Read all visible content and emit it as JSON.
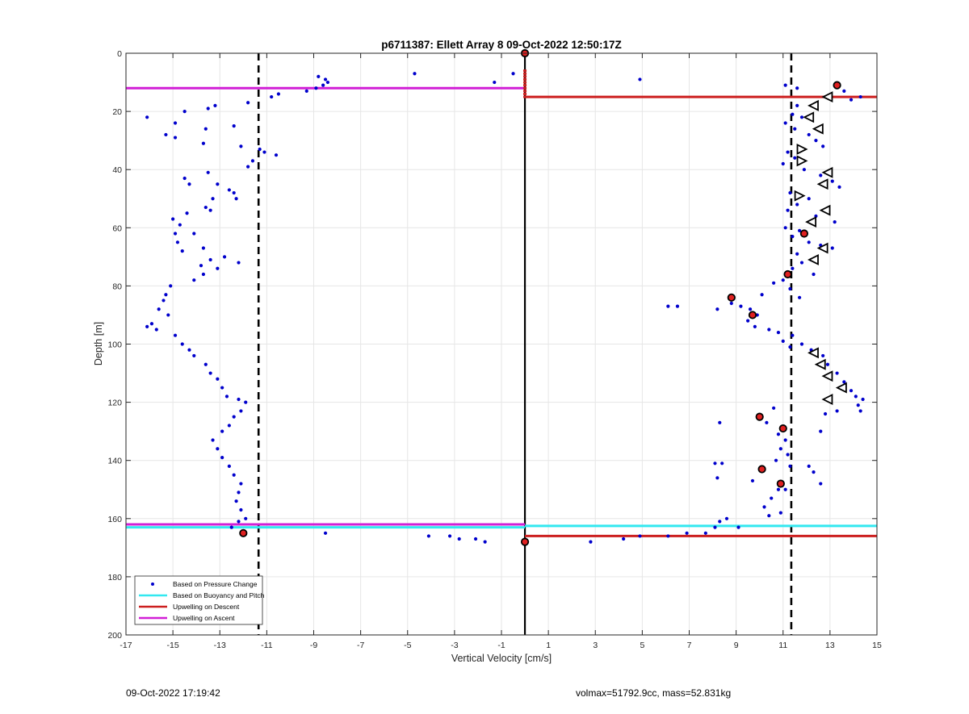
{
  "footer": {
    "timestamp": "09-Oct-2022 17:19:42",
    "summary": "volmax=51792.9cc, mass=52.831kg"
  },
  "colors": {
    "pressure": "#0000cc",
    "buoyancy": "#33e8f0",
    "descent": "#cc1f1f",
    "ascent": "#d11fd6",
    "grid": "#e6e6e6",
    "axis": "#262626"
  },
  "chart_data": {
    "type": "scatter",
    "title": "p6711387: Ellett Array 8 09-Oct-2022 12:50:17Z",
    "xlabel": "Vertical Velocity [cm/s]",
    "ylabel": "Depth [m]",
    "xlim": [
      -17,
      15
    ],
    "ylim": [
      0,
      200
    ],
    "y_reversed": true,
    "grid": true,
    "legend_position": "bottom-left",
    "xticks": [
      -17,
      -15,
      -13,
      -11,
      -9,
      -7,
      -5,
      -3,
      -1,
      1,
      3,
      5,
      7,
      9,
      11,
      13,
      15
    ],
    "yticks": [
      0,
      20,
      40,
      60,
      80,
      100,
      120,
      140,
      160,
      180,
      200
    ],
    "legend": [
      {
        "label": "Based on Pressure Change",
        "style": "dot",
        "color": "#0000cc"
      },
      {
        "label": "Based on Buoyancy and Pitch",
        "style": "line",
        "color": "#33e8f0"
      },
      {
        "label": "Upwelling on Descent",
        "style": "line",
        "color": "#cc1f1f"
      },
      {
        "label": "Upwelling on Ascent",
        "style": "line",
        "color": "#d11fd6"
      }
    ],
    "series": [
      {
        "name": "Based on Pressure Change",
        "marker": "dot",
        "points": [
          [
            -16.1,
            22
          ],
          [
            -15.3,
            28
          ],
          [
            -14.9,
            24
          ],
          [
            -14.5,
            20
          ],
          [
            -14.9,
            29
          ],
          [
            -13.7,
            31
          ],
          [
            -13.5,
            19
          ],
          [
            -13.2,
            18
          ],
          [
            -13.6,
            26
          ],
          [
            -12.4,
            25
          ],
          [
            -12.1,
            32
          ],
          [
            -11.8,
            39
          ],
          [
            -11.6,
            37
          ],
          [
            -11.3,
            33
          ],
          [
            -11.1,
            34
          ],
          [
            -10.6,
            35
          ],
          [
            -11.8,
            17
          ],
          [
            -10.8,
            15
          ],
          [
            -10.5,
            14
          ],
          [
            -9.3,
            13
          ],
          [
            -8.9,
            12
          ],
          [
            -8.8,
            8
          ],
          [
            -8.6,
            11
          ],
          [
            -8.5,
            9
          ],
          [
            -8.4,
            10
          ],
          [
            -4.7,
            7
          ],
          [
            -1.3,
            10
          ],
          [
            -0.5,
            7
          ],
          [
            -14.5,
            43
          ],
          [
            -14.3,
            45
          ],
          [
            -13.5,
            41
          ],
          [
            -13.1,
            45
          ],
          [
            -12.6,
            47
          ],
          [
            -13.3,
            50
          ],
          [
            -13.6,
            53
          ],
          [
            -13.4,
            54
          ],
          [
            -12.4,
            48
          ],
          [
            -12.3,
            50
          ],
          [
            -14.4,
            55
          ],
          [
            -15.0,
            57
          ],
          [
            -14.7,
            59
          ],
          [
            -14.9,
            62
          ],
          [
            -14.8,
            65
          ],
          [
            -14.6,
            68
          ],
          [
            -14.1,
            62
          ],
          [
            -13.7,
            67
          ],
          [
            -13.4,
            71
          ],
          [
            -13.8,
            73
          ],
          [
            -13.1,
            74
          ],
          [
            -12.8,
            70
          ],
          [
            -12.2,
            72
          ],
          [
            -13.7,
            76
          ],
          [
            -14.1,
            78
          ],
          [
            -15.1,
            80
          ],
          [
            -15.3,
            83
          ],
          [
            -15.4,
            85
          ],
          [
            -15.6,
            88
          ],
          [
            -15.2,
            90
          ],
          [
            -15.9,
            93
          ],
          [
            -16.1,
            94
          ],
          [
            -15.7,
            95
          ],
          [
            -14.9,
            97
          ],
          [
            -14.6,
            100
          ],
          [
            -14.3,
            102
          ],
          [
            -14.1,
            104
          ],
          [
            -13.6,
            107
          ],
          [
            -13.4,
            110
          ],
          [
            -13.1,
            112
          ],
          [
            -12.9,
            115
          ],
          [
            -12.7,
            118
          ],
          [
            -12.2,
            119
          ],
          [
            -11.9,
            120
          ],
          [
            -12.1,
            123
          ],
          [
            -12.4,
            125
          ],
          [
            -12.6,
            128
          ],
          [
            -12.9,
            130
          ],
          [
            -13.3,
            133
          ],
          [
            -13.1,
            136
          ],
          [
            -12.9,
            139
          ],
          [
            -12.6,
            142
          ],
          [
            -12.4,
            145
          ],
          [
            -12.1,
            148
          ],
          [
            -12.2,
            151
          ],
          [
            -12.3,
            154
          ],
          [
            -12.1,
            157
          ],
          [
            -11.9,
            160
          ],
          [
            -12.2,
            161
          ],
          [
            -12.5,
            163
          ],
          [
            -8.5,
            165
          ],
          [
            -4.1,
            166
          ],
          [
            -3.2,
            166
          ],
          [
            -2.8,
            167
          ],
          [
            -2.1,
            167
          ],
          [
            -1.7,
            168
          ],
          [
            4.9,
            9
          ],
          [
            11.1,
            11
          ],
          [
            11.6,
            12
          ],
          [
            13.6,
            13
          ],
          [
            14.3,
            15
          ],
          [
            13.9,
            16
          ],
          [
            11.6,
            18
          ],
          [
            11.4,
            21
          ],
          [
            11.1,
            24
          ],
          [
            11.8,
            22
          ],
          [
            11.5,
            26
          ],
          [
            12.1,
            28
          ],
          [
            12.4,
            30
          ],
          [
            12.7,
            32
          ],
          [
            11.2,
            34
          ],
          [
            11.5,
            36
          ],
          [
            11.0,
            38
          ],
          [
            11.9,
            40
          ],
          [
            12.6,
            42
          ],
          [
            13.1,
            44
          ],
          [
            13.4,
            46
          ],
          [
            11.3,
            48
          ],
          [
            12.1,
            50
          ],
          [
            11.6,
            52
          ],
          [
            11.2,
            54
          ],
          [
            12.4,
            56
          ],
          [
            13.2,
            58
          ],
          [
            11.1,
            60
          ],
          [
            11.7,
            61
          ],
          [
            11.4,
            63
          ],
          [
            12.1,
            65
          ],
          [
            12.6,
            66
          ],
          [
            13.1,
            67
          ],
          [
            11.6,
            69
          ],
          [
            12.2,
            71
          ],
          [
            11.8,
            72
          ],
          [
            11.4,
            74
          ],
          [
            12.3,
            76
          ],
          [
            11.0,
            78
          ],
          [
            10.6,
            79
          ],
          [
            11.3,
            81
          ],
          [
            10.1,
            83
          ],
          [
            11.7,
            84
          ],
          [
            8.2,
            88
          ],
          [
            6.1,
            87
          ],
          [
            6.5,
            87
          ],
          [
            8.8,
            86
          ],
          [
            9.2,
            87
          ],
          [
            9.6,
            88
          ],
          [
            9.9,
            90
          ],
          [
            9.5,
            92
          ],
          [
            9.8,
            94
          ],
          [
            10.4,
            95
          ],
          [
            10.8,
            96
          ],
          [
            11.4,
            97
          ],
          [
            11.0,
            99
          ],
          [
            11.8,
            100
          ],
          [
            11.3,
            101
          ],
          [
            12.2,
            102
          ],
          [
            12.7,
            104
          ],
          [
            12.9,
            107
          ],
          [
            13.3,
            110
          ],
          [
            13.6,
            113
          ],
          [
            13.9,
            116
          ],
          [
            14.1,
            118
          ],
          [
            14.4,
            119
          ],
          [
            14.2,
            121
          ],
          [
            13.3,
            123
          ],
          [
            12.8,
            124
          ],
          [
            14.3,
            123
          ],
          [
            8.3,
            127
          ],
          [
            10.6,
            122
          ],
          [
            10.3,
            127
          ],
          [
            10.8,
            131
          ],
          [
            11.1,
            133
          ],
          [
            10.9,
            136
          ],
          [
            11.2,
            138
          ],
          [
            10.7,
            140
          ],
          [
            11.3,
            142
          ],
          [
            12.1,
            142
          ],
          [
            12.3,
            144
          ],
          [
            8.1,
            141
          ],
          [
            8.4,
            141
          ],
          [
            8.2,
            146
          ],
          [
            12.6,
            148
          ],
          [
            10.8,
            150
          ],
          [
            10.5,
            153
          ],
          [
            10.2,
            156
          ],
          [
            10.4,
            159
          ],
          [
            12.6,
            130
          ],
          [
            11.1,
            150
          ],
          [
            9.7,
            147
          ],
          [
            8.6,
            160
          ],
          [
            8.3,
            161
          ],
          [
            8.1,
            163
          ],
          [
            7.7,
            165
          ],
          [
            6.9,
            165
          ],
          [
            6.1,
            166
          ],
          [
            4.9,
            166
          ],
          [
            4.2,
            167
          ],
          [
            2.8,
            168
          ],
          [
            9.1,
            163
          ],
          [
            10.9,
            158
          ]
        ]
      },
      {
        "name": "Based on Buoyancy and Pitch",
        "marker": "line",
        "segments": [
          {
            "x": [
              -17,
              0
            ],
            "y": [
              163,
              163
            ]
          },
          {
            "x": [
              0,
              15
            ],
            "y": [
              162.5,
              162.5
            ]
          }
        ]
      },
      {
        "name": "Upwelling on Descent",
        "marker": "line",
        "segments": [
          {
            "x": [
              0,
              15
            ],
            "y": [
              15,
              15
            ]
          },
          {
            "x": [
              0,
              15
            ],
            "y": [
              166,
              166
            ]
          }
        ]
      },
      {
        "name": "Upwelling on Ascent",
        "marker": "line",
        "segments": [
          {
            "x": [
              -17,
              0
            ],
            "y": [
              12,
              12
            ]
          },
          {
            "x": [
              -17,
              0
            ],
            "y": [
              162,
              162
            ]
          }
        ]
      }
    ],
    "reference_lines": {
      "center_vertical": {
        "x": 0,
        "y": [
          0,
          200
        ],
        "color": "#000000",
        "style": "solid"
      },
      "dashed_vertical": [
        {
          "x": -11.35,
          "y": [
            0,
            200
          ],
          "color": "#000000",
          "style": "dashed"
        },
        {
          "x": 11.35,
          "y": [
            0,
            200
          ],
          "color": "#000000",
          "style": "dashed"
        }
      ]
    },
    "highlight_markers": {
      "red_filled": [
        [
          0,
          0
        ],
        [
          13.3,
          11
        ],
        [
          11.9,
          62
        ],
        [
          11.2,
          76
        ],
        [
          8.8,
          84
        ],
        [
          9.7,
          90
        ],
        [
          10.0,
          125
        ],
        [
          11.0,
          129
        ],
        [
          10.1,
          143
        ],
        [
          10.9,
          148
        ],
        [
          -12.0,
          165
        ],
        [
          0,
          168
        ]
      ],
      "triangles_left": [
        [
          12.9,
          15
        ],
        [
          12.3,
          18
        ],
        [
          12.1,
          22
        ],
        [
          12.5,
          26
        ],
        [
          12.9,
          41
        ],
        [
          12.7,
          45
        ],
        [
          12.8,
          54
        ],
        [
          12.2,
          58
        ],
        [
          12.7,
          67
        ],
        [
          12.3,
          71
        ],
        [
          12.3,
          103
        ],
        [
          12.6,
          107
        ],
        [
          12.9,
          111
        ],
        [
          13.5,
          115
        ],
        [
          12.9,
          119
        ]
      ],
      "triangles_right": [
        [
          11.8,
          33
        ],
        [
          11.8,
          37
        ],
        [
          11.7,
          49
        ]
      ],
      "red_markers_on_zero": {
        "x": 0,
        "y_range": [
          6,
          15
        ]
      }
    }
  }
}
